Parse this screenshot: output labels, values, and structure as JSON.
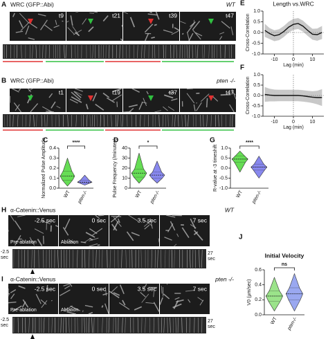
{
  "panels": [
    {
      "letter": "A",
      "title": "WRC (GFP::Abi)",
      "genotype": "WT",
      "frames": [
        "t9",
        "t21",
        "t39",
        "t47"
      ]
    },
    {
      "letter": "B",
      "title": "WRC (GFP::Abi)",
      "genotype": "pten -/-",
      "frames": [
        "t1",
        "t19",
        "t37",
        "t47"
      ]
    }
  ],
  "ablation": [
    {
      "letter": "H",
      "title": "α-Catenin::Venus",
      "genotype": "WT",
      "frames": [
        "-2.5 sec",
        "0 sec",
        "3.5 sec",
        "7 sec"
      ],
      "frame_notes": [
        "Pre-ablation",
        "Ablation"
      ],
      "kymo_start": "-2.5 sec",
      "kymo_end": "27 sec"
    },
    {
      "letter": "I",
      "title": "α-Catenin::Venus",
      "genotype": "pten -/-",
      "frames": [
        "-2.5 sec",
        "0 sec",
        "3.5 sec",
        "7 sec"
      ],
      "frame_notes": [
        "Pre-ablation",
        "Ablation"
      ],
      "kymo_start": "-2.5 sec",
      "kymo_end": "27 sec"
    }
  ],
  "chart_data": [
    {
      "type": "line",
      "panel": "E",
      "title": "Length vs.WRC",
      "x_label": "Lag (min)",
      "y_label": "Cross-Correlation",
      "x": [
        -15,
        -12.5,
        -10,
        -7.5,
        -5,
        -2.5,
        0,
        2.5,
        5,
        7.5,
        10,
        12.5,
        15
      ],
      "values": [
        0.1,
        -0.05,
        -0.15,
        -0.1,
        0.05,
        0.25,
        0.38,
        0.42,
        0.3,
        0.1,
        -0.08,
        -0.1,
        0.0
      ],
      "band_upper": [
        0.4,
        0.2,
        0.1,
        0.15,
        0.3,
        0.5,
        0.63,
        0.67,
        0.55,
        0.35,
        0.17,
        0.18,
        0.3
      ],
      "band_lower": [
        -0.2,
        -0.3,
        -0.4,
        -0.35,
        -0.2,
        0.0,
        0.13,
        0.17,
        0.05,
        -0.15,
        -0.33,
        -0.38,
        -0.3
      ],
      "color": "#111111",
      "band_color": "#c8c8c8",
      "xlim": [
        -16,
        16
      ],
      "ylim": [
        -1,
        1
      ],
      "xticks": [
        -10,
        0,
        10
      ],
      "yticks": [
        {
          "value": -1,
          "label": "-1.0"
        },
        -0.5,
        {
          "value": 0,
          "label": "0.0"
        },
        0.5,
        {
          "value": 1,
          "label": "1.0"
        }
      ],
      "vline": 0,
      "hline": 0
    },
    {
      "type": "line",
      "panel": "F",
      "x_label": "Lag (min)",
      "y_label": "Cross-Correlation",
      "x": [
        -15,
        -12.5,
        -10,
        -7.5,
        -5,
        -2.5,
        0,
        2.5,
        5,
        7.5,
        10,
        12.5,
        15
      ],
      "values": [
        0.05,
        0.02,
        0.0,
        0.0,
        0.0,
        0.0,
        0.0,
        0.0,
        -0.02,
        -0.05,
        -0.08,
        -0.1,
        -0.1
      ],
      "band_upper": [
        0.4,
        0.32,
        0.28,
        0.27,
        0.27,
        0.27,
        0.27,
        0.27,
        0.25,
        0.22,
        0.2,
        0.22,
        0.3
      ],
      "band_lower": [
        -0.3,
        -0.28,
        -0.28,
        -0.27,
        -0.27,
        -0.27,
        -0.27,
        -0.27,
        -0.29,
        -0.32,
        -0.36,
        -0.42,
        -0.5
      ],
      "color": "#111111",
      "band_color": "#c8c8c8",
      "xlim": [
        -16,
        16
      ],
      "ylim": [
        -1,
        1
      ],
      "xticks": [
        -10,
        0,
        10
      ],
      "yticks": [
        {
          "value": -1,
          "label": "-1.0"
        },
        -0.5,
        {
          "value": 0,
          "label": "0.0"
        },
        0.5,
        {
          "value": 1,
          "label": "1.0"
        }
      ],
      "vline": 0,
      "hline": 0
    },
    {
      "type": "violin",
      "panel": "C",
      "y_label": "Normalized Pulse Amplitude",
      "categories": [
        "WT",
        "pten-/-"
      ],
      "colors": [
        "#66dd55",
        "#8888ee"
      ],
      "stats": [
        {
          "min": 0.02,
          "q1": 0.08,
          "median": 0.12,
          "q3": 0.17,
          "max": 0.3
        },
        {
          "min": 0.03,
          "q1": 0.05,
          "median": 0.06,
          "q3": 0.08,
          "max": 0.13
        }
      ],
      "significance": "****",
      "ylim": [
        0,
        0.4
      ],
      "yticks": [
        {
          "value": 0,
          "label": "0.0"
        },
        0.1,
        0.2,
        0.3,
        0.4
      ]
    },
    {
      "type": "violin",
      "panel": "D",
      "y_label": "Pulse Frequency (/minutes)",
      "categories": [
        "WT",
        "pten-/-"
      ],
      "colors": [
        "#66dd55",
        "#8888ee"
      ],
      "stats": [
        {
          "min": 5,
          "q1": 11,
          "median": 15,
          "q3": 19,
          "max": 35
        },
        {
          "min": 5,
          "q1": 10,
          "median": 13,
          "q3": 16,
          "max": 27
        }
      ],
      "significance": "*",
      "ylim": [
        0,
        40
      ],
      "yticks": [
        0,
        10,
        20,
        30,
        40
      ]
    },
    {
      "type": "violin",
      "panel": "G",
      "y_label": "R-value at -3 timeshift",
      "categories": [
        "WT",
        "pten-/-"
      ],
      "colors": [
        "#66dd55",
        "#8888ee"
      ],
      "stats": [
        {
          "min": -0.2,
          "q1": 0.3,
          "median": 0.45,
          "q3": 0.6,
          "max": 0.85
        },
        {
          "min": -0.5,
          "q1": -0.1,
          "median": 0.05,
          "q3": 0.2,
          "max": 0.6
        }
      ],
      "significance": "****",
      "ylim": [
        -1,
        1
      ],
      "yticks": [
        {
          "value": -1,
          "label": "-1.0"
        },
        -0.5,
        {
          "value": 0,
          "label": "0.0"
        },
        0.5,
        {
          "value": 1,
          "label": "1.0"
        }
      ]
    },
    {
      "type": "violin",
      "panel": "J",
      "title": "Initial Velocity",
      "y_label": "V0 (μm/sec)",
      "categories": [
        "WT",
        "pten-/-"
      ],
      "colors": [
        "#9be38a",
        "#9aa8f0"
      ],
      "stats": [
        {
          "min": 0.05,
          "q1": 0.18,
          "median": 0.25,
          "q3": 0.32,
          "max": 0.5
        },
        {
          "min": 0.05,
          "q1": 0.2,
          "median": 0.28,
          "q3": 0.36,
          "max": 0.55
        }
      ],
      "significance": "ns",
      "ylim": [
        0,
        0.6
      ],
      "yticks": [
        {
          "value": 0,
          "label": "0.0"
        },
        0.2,
        0.4,
        0.6
      ]
    }
  ]
}
